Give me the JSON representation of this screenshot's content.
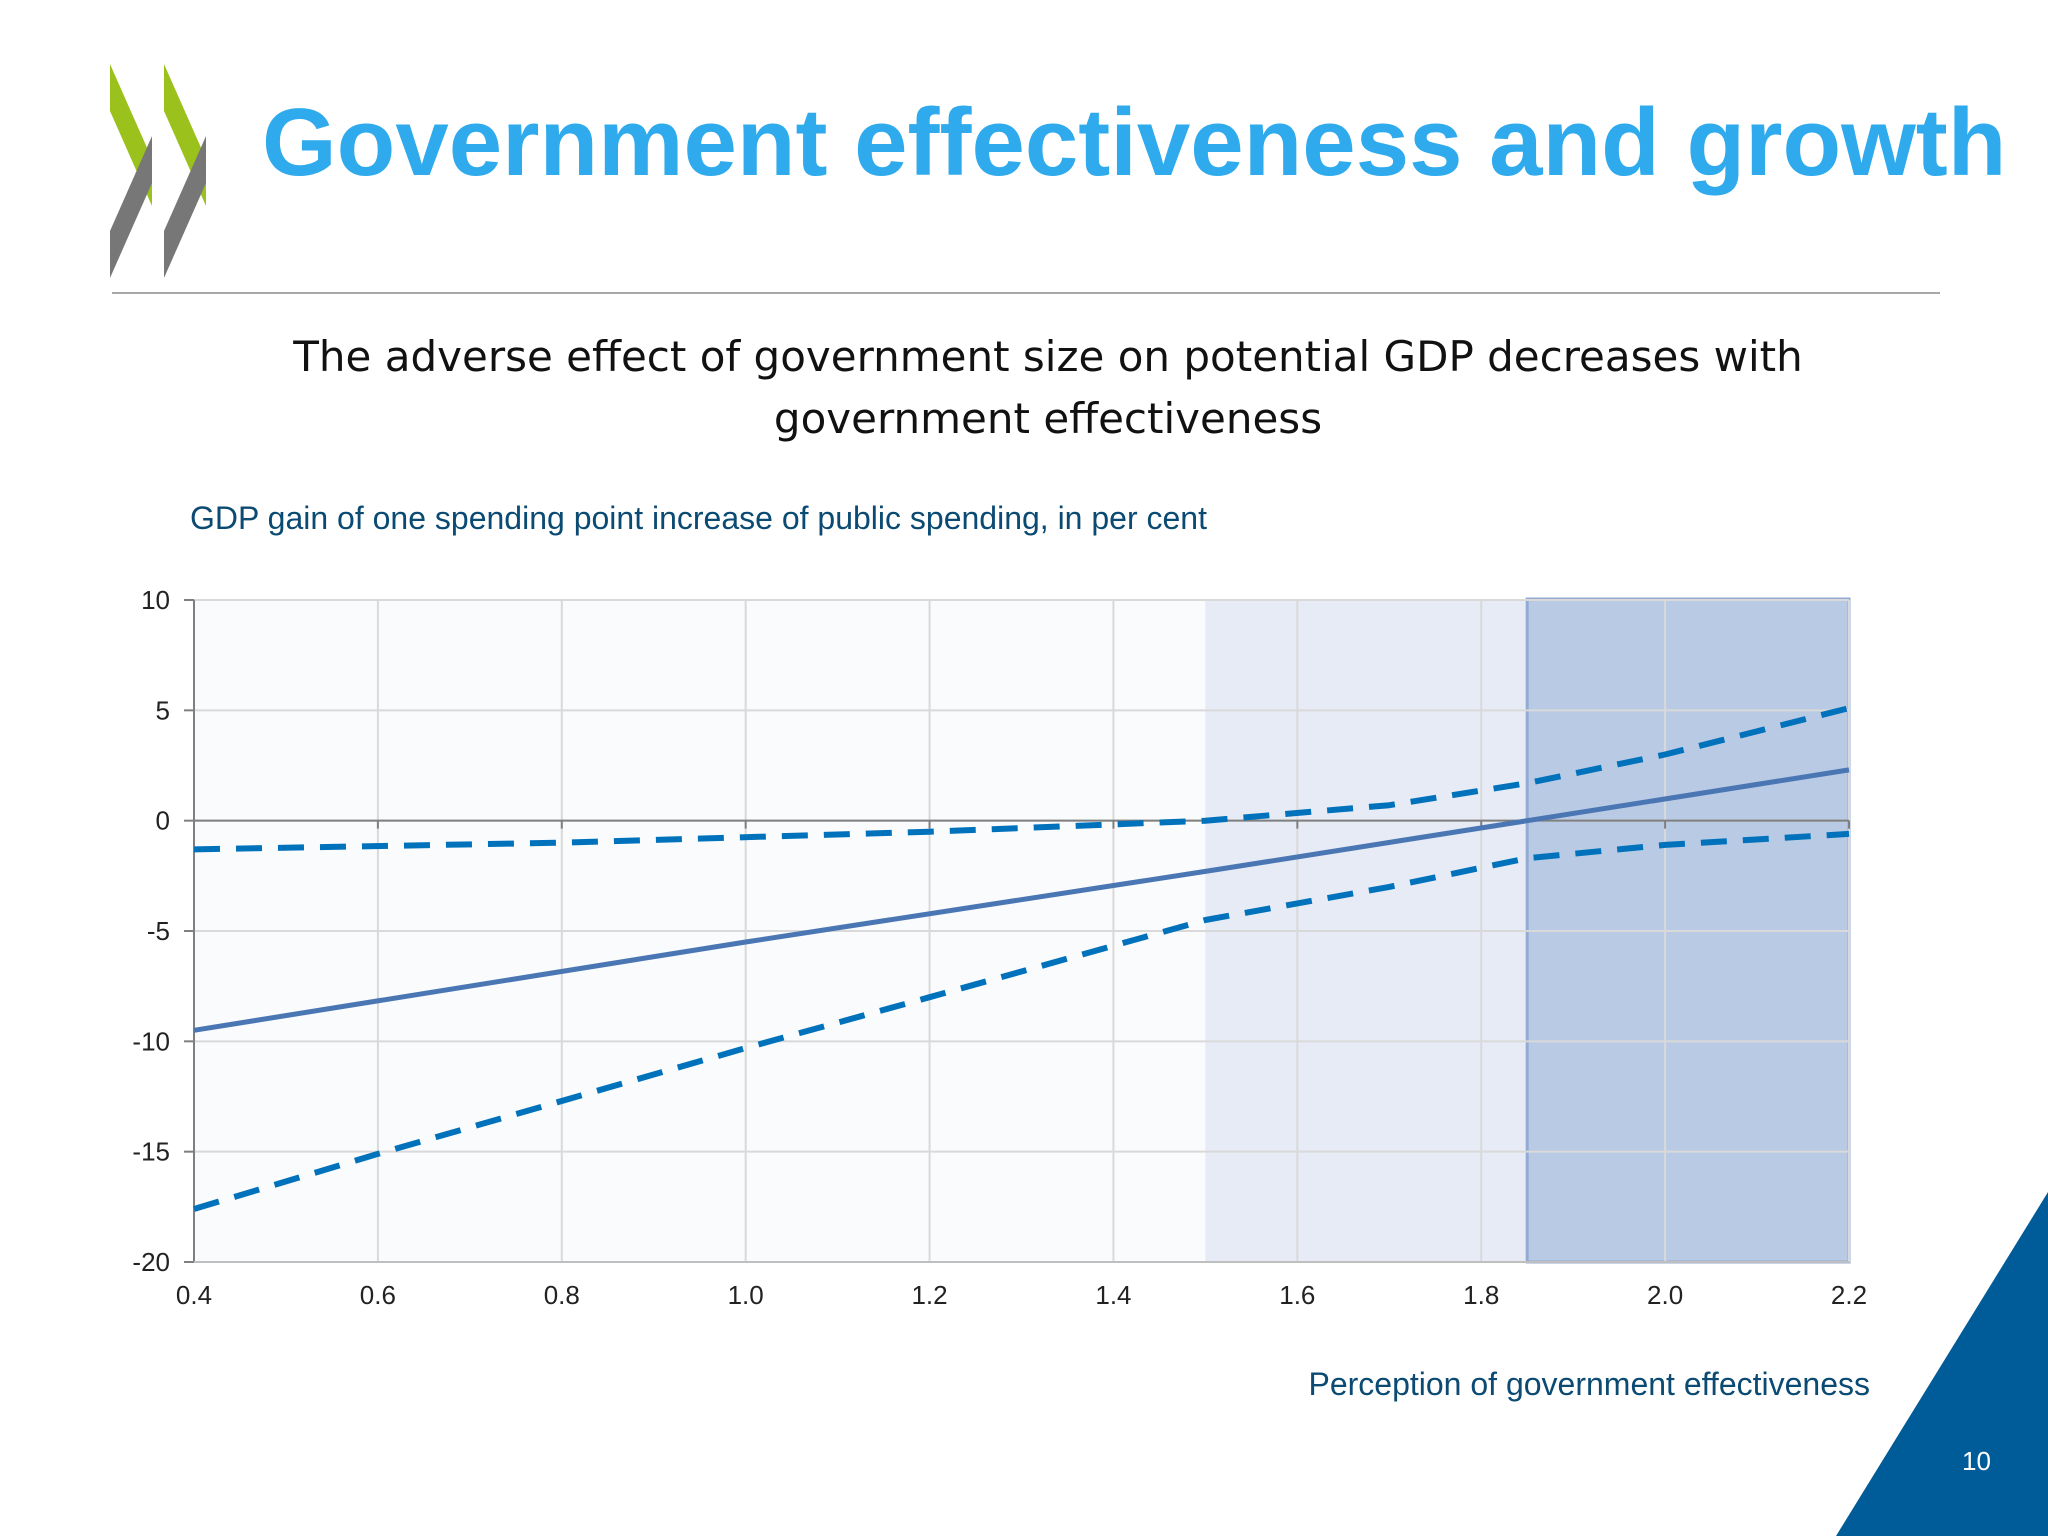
{
  "slide": {
    "title": "Government effectiveness and growth",
    "subtitle_lines": [
      "The adverse effect of government size on potential GDP decreases with",
      "government effectiveness"
    ],
    "page_number": "10"
  },
  "colors": {
    "title": "#2eaaed",
    "logo_green": "#9bc21c",
    "logo_grey": "#777777",
    "corner": "#005b99",
    "series": "#4a77b4",
    "band": "#0072bc",
    "shade_light": "#e6ebf5",
    "shade_dark": "#b9cae4"
  },
  "chart_data": {
    "type": "line",
    "title": "GDP gain of one spending point increase of public spending, in per cent",
    "xlabel": "Perception of government effectiveness",
    "ylabel": "",
    "xlim": [
      0.4,
      2.2
    ],
    "ylim": [
      -20,
      10
    ],
    "x_ticks": [
      "0.4",
      "0.6",
      "0.8",
      "1.0",
      "1.2",
      "1.4",
      "1.6",
      "1.8",
      "2.0",
      "2.2"
    ],
    "y_ticks": [
      "10",
      "5",
      "0",
      "-5",
      "-10",
      "-15",
      "-20"
    ],
    "grid": true,
    "legend": "none",
    "shaded_regions": [
      {
        "x_from": 1.5,
        "x_to": 1.85,
        "tone": "light"
      },
      {
        "x_from": 1.85,
        "x_to": 2.2,
        "tone": "dark"
      }
    ],
    "series": [
      {
        "style": "solid",
        "x": [
          0.4,
          1.0,
          1.5,
          1.85,
          2.2
        ],
        "y": [
          -9.5,
          -5.5,
          -2.3,
          0,
          2.3
        ]
      },
      {
        "style": "dashed",
        "x": [
          0.4,
          0.8,
          1.2,
          1.5,
          1.7,
          1.85,
          2.0,
          2.2
        ],
        "y": [
          -1.3,
          -1.0,
          -0.5,
          0,
          0.7,
          1.7,
          3.0,
          5.1
        ]
      },
      {
        "style": "dashed",
        "x": [
          0.4,
          0.6,
          1.0,
          1.2,
          1.5,
          1.7,
          1.85,
          2.0,
          2.2
        ],
        "y": [
          -17.6,
          -15.1,
          -10.3,
          -8.0,
          -4.5,
          -3.0,
          -1.7,
          -1.1,
          -0.6
        ]
      }
    ]
  }
}
